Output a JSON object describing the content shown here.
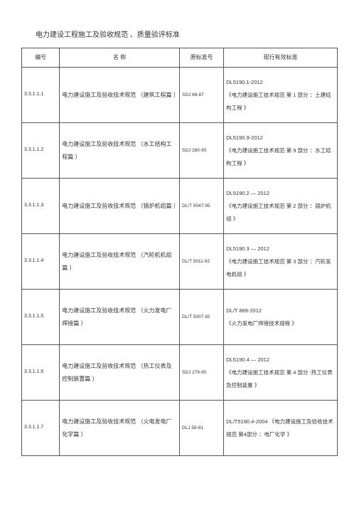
{
  "title": "电力建设工程施工及验收规范 、质量验评标准",
  "headers": {
    "id": "编号",
    "name": "名 称",
    "orig": "原标准号",
    "curr": "现行有效标准"
  },
  "rows": [
    {
      "id": "3.3.1.1.1",
      "name": "电力建设施工及验收技术规范 （建筑工程篇 ）",
      "orig": "SDJ 69-87",
      "curr": "DL5190.1-2012\n《电力建设施工技术规范 第 1 部分 ：土建结构工程 》"
    },
    {
      "id": "3.3.1.1.2",
      "name": "电力建设施工及验收技术规范 （水工结构工程篇 ）",
      "orig": "SDJ 280-90",
      "curr": "DL5190.9-2012\n《电力建设施工技术规范 第 9 部分 ：水工结构工程 》"
    },
    {
      "id": "3.3.1.1.3",
      "name": "电力建设施工及验收技术规范 （锅炉机组篇 ）",
      "orig": "DL/T 5047-95",
      "curr": "DL5190.2 — 2012\n《电力建设施工技术规范 第 2 部分 ：锅炉机组 》"
    },
    {
      "id": "3.3.1.1.4",
      "name": "电力建设施工及验收技术规范 （汽轮机机组篇 ）",
      "orig": "DL/T 5011-92",
      "curr": "DL5190.3 — 2012\n《电力建设施工技术规范 第 3 部分 ：汽轮发电机组 》"
    },
    {
      "id": "3.3.1.1.5",
      "name": "电力建设施工及验收技术规范 （火力发电厂焊接篇 ）",
      "orig": "DL/T 5007-92",
      "curr": "DL/T 869-2012\n《火力发电厂焊接技术规程 》"
    },
    {
      "id": "3.3.1.1.6",
      "name": "电力建设施工及验收技术规范 （热工仪表及控制装置篇 ）",
      "orig": "SDJ 279-90",
      "curr": "DL5190.4 — 2012\n《电力建设施工技术规范 第 4 部分 :热工仪表及控制装置 》"
    },
    {
      "id": "3.3.1.1.7",
      "name": "电力建设施工及验收技术规范 （火电发电厂化学篇 ）",
      "orig": "DLJ 58-81",
      "curr": "DL/T5190.4-2004 《电力建设施工及验收技术规范 第4部分 ：电厂化学 》"
    }
  ]
}
